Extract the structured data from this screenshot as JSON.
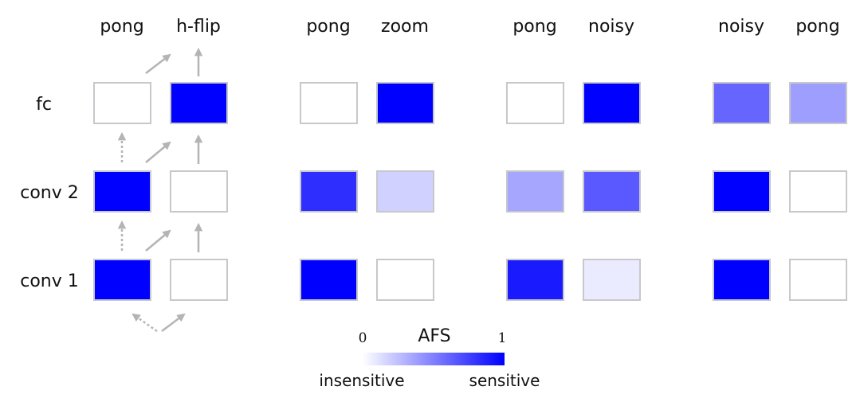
{
  "colors": {
    "high": "#0000ff",
    "low": "#ffffff",
    "cell_border": "#c8c8cc",
    "arrow": "#b4b4b4"
  },
  "row_labels": [
    "fc",
    "conv 2",
    "conv 1"
  ],
  "panels": [
    {
      "columns": [
        "pong",
        "h-flip"
      ],
      "afs": [
        [
          0.0,
          1.0
        ],
        [
          1.0,
          0.0
        ],
        [
          1.0,
          0.0
        ]
      ]
    },
    {
      "columns": [
        "pong",
        "zoom"
      ],
      "afs": [
        [
          0.0,
          1.0
        ],
        [
          0.82,
          0.18
        ],
        [
          1.0,
          0.0
        ]
      ]
    },
    {
      "columns": [
        "pong",
        "noisy"
      ],
      "afs": [
        [
          0.0,
          1.0
        ],
        [
          0.35,
          0.65
        ],
        [
          0.9,
          0.08
        ]
      ]
    },
    {
      "columns": [
        "noisy",
        "pong"
      ],
      "afs": [
        [
          0.6,
          0.38
        ],
        [
          1.0,
          0.0
        ],
        [
          1.0,
          0.0
        ]
      ]
    }
  ],
  "colorbar": {
    "title": "AFS",
    "min_label": "0",
    "max_label": "1",
    "left_caption": "insensitive",
    "right_caption": "sensitive"
  }
}
